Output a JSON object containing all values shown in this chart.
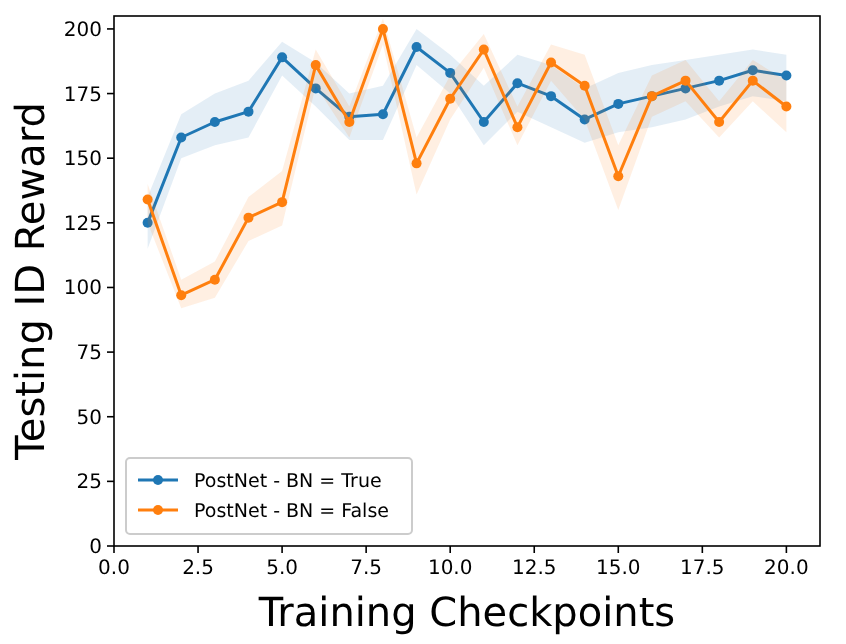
{
  "chart_data": {
    "type": "line",
    "xlabel": "Training Checkpoints",
    "ylabel": "Testing ID Reward",
    "x": [
      1,
      2,
      3,
      4,
      5,
      6,
      7,
      8,
      9,
      10,
      11,
      12,
      13,
      14,
      15,
      16,
      17,
      18,
      19,
      20
    ],
    "series": [
      {
        "name": "PostNet - BN = True",
        "color": "#1f77b4",
        "values": [
          125,
          158,
          164,
          168,
          189,
          177,
          166,
          167,
          193,
          183,
          164,
          179,
          174,
          165,
          171,
          174,
          177,
          180,
          184,
          182
        ],
        "lower": [
          115,
          150,
          155,
          158,
          182,
          170,
          157,
          157,
          186,
          175,
          155,
          168,
          162,
          156,
          160,
          162,
          165,
          170,
          174,
          172
        ],
        "upper": [
          135,
          167,
          175,
          180,
          195,
          187,
          175,
          178,
          200,
          190,
          178,
          190,
          186,
          177,
          183,
          186,
          188,
          190,
          192,
          190
        ]
      },
      {
        "name": "PostNet - BN = False",
        "color": "#ff7f0e",
        "values": [
          134,
          97,
          103,
          127,
          133,
          186,
          164,
          200,
          148,
          173,
          192,
          162,
          187,
          178,
          143,
          174,
          180,
          164,
          180,
          170
        ],
        "lower": [
          125,
          92,
          96,
          118,
          124,
          178,
          158,
          194,
          136,
          165,
          185,
          155,
          180,
          165,
          130,
          166,
          172,
          158,
          172,
          160
        ],
        "upper": [
          140,
          103,
          110,
          135,
          145,
          192,
          170,
          204,
          158,
          182,
          198,
          170,
          194,
          190,
          155,
          182,
          188,
          172,
          188,
          180
        ]
      }
    ],
    "xlim": [
      0,
      21
    ],
    "ylim": [
      0,
      205
    ],
    "xticks": [
      {
        "value": 0,
        "label": "0.0"
      },
      {
        "value": 2.5,
        "label": "2.5"
      },
      {
        "value": 5,
        "label": "5.0"
      },
      {
        "value": 7.5,
        "label": "7.5"
      },
      {
        "value": 10,
        "label": "10.0"
      },
      {
        "value": 12.5,
        "label": "12.5"
      },
      {
        "value": 15,
        "label": "15.0"
      },
      {
        "value": 17.5,
        "label": "17.5"
      },
      {
        "value": 20,
        "label": "20.0"
      }
    ],
    "yticks": [
      0,
      25,
      50,
      75,
      100,
      125,
      150,
      175,
      200
    ],
    "marker": "circle",
    "line_style": "solid",
    "legend": "bottom left",
    "grid": false
  }
}
